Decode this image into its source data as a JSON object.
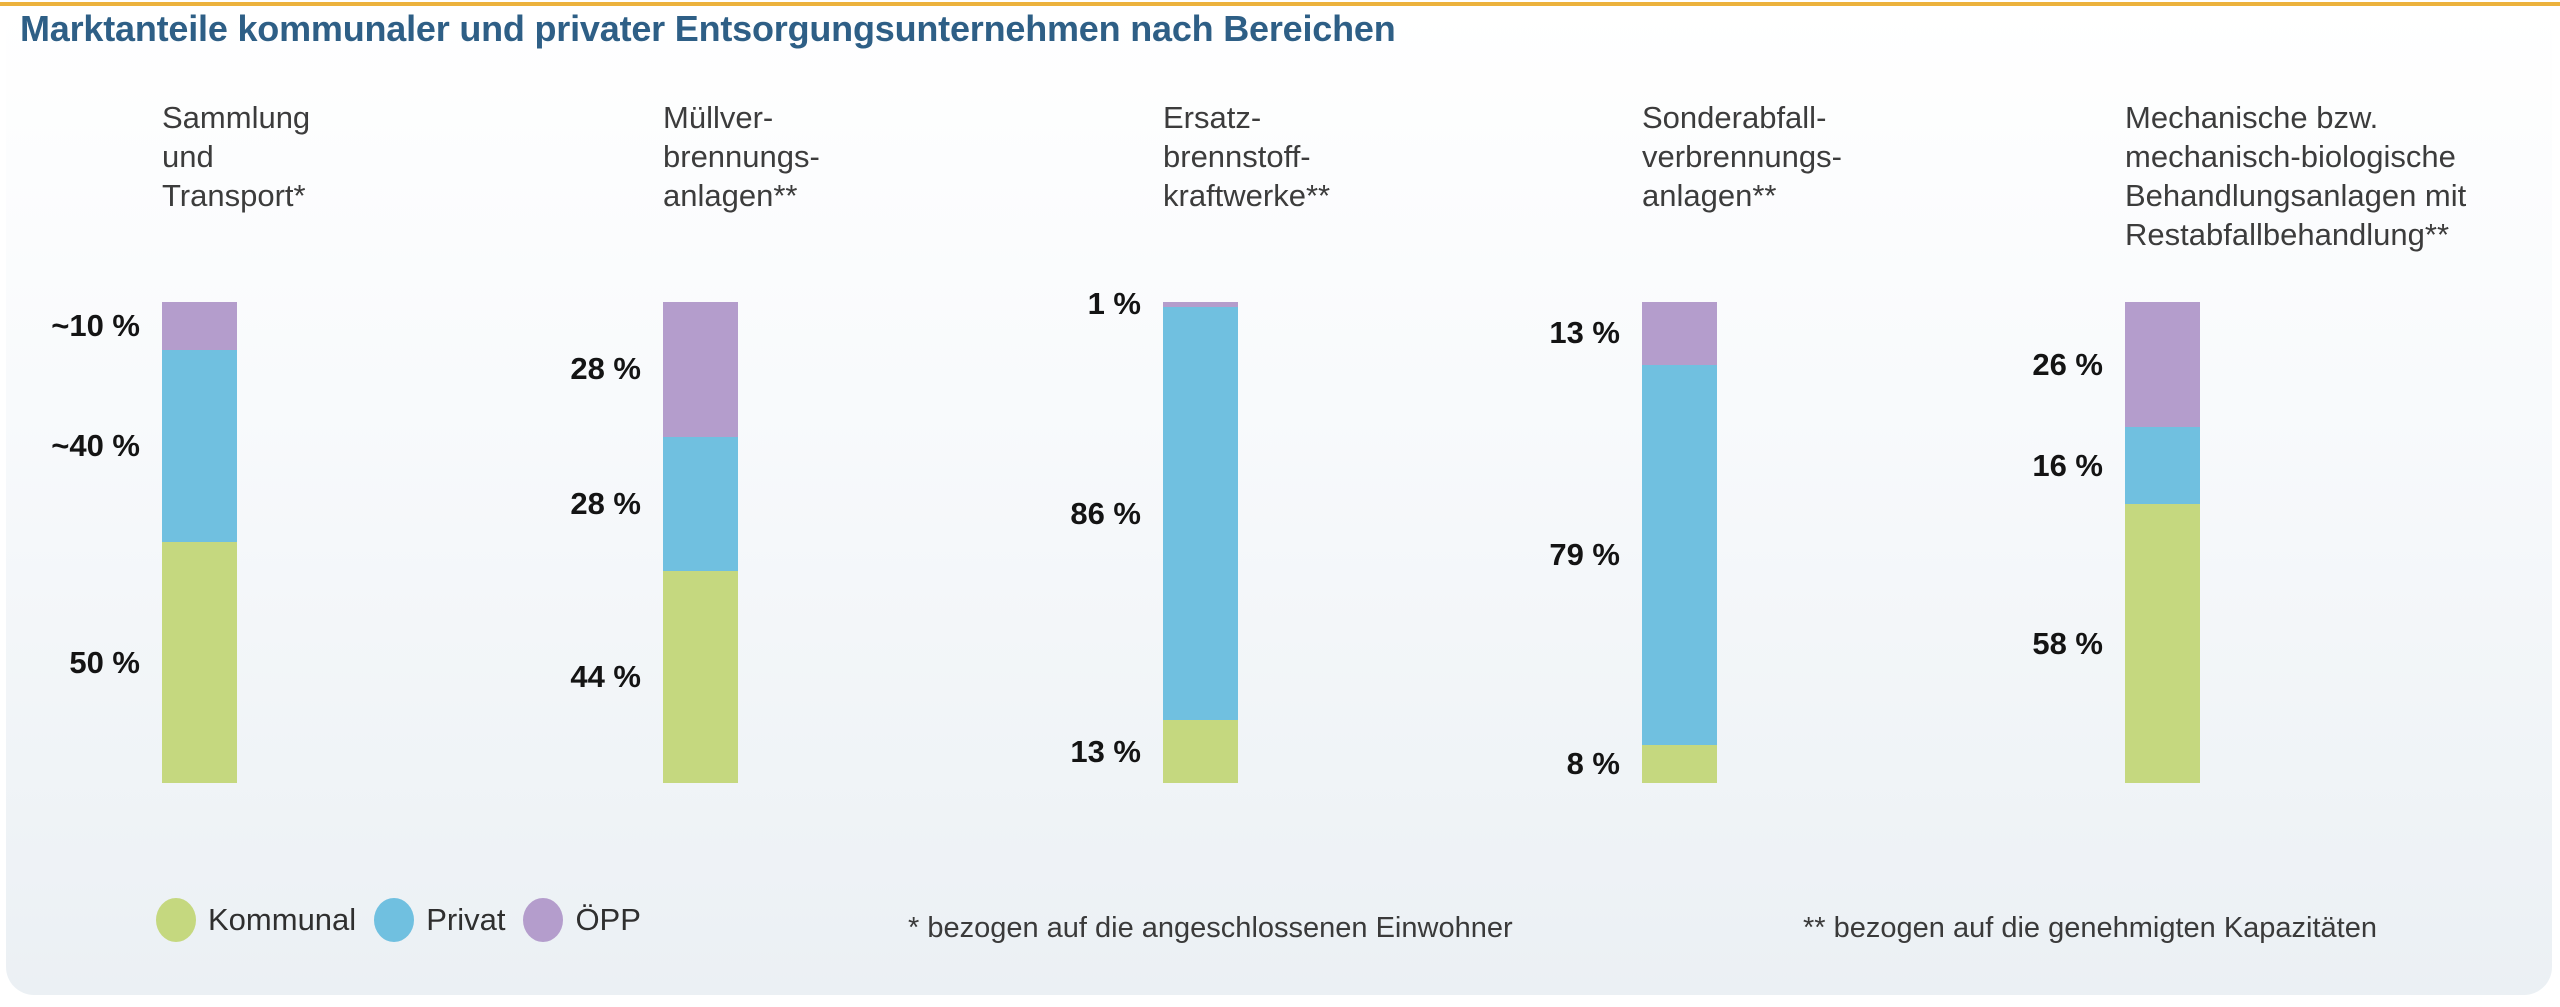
{
  "title": "Marktanteile kommunaler und privater Entsorgungsunternehmen nach Bereichen",
  "accent_color": "#ecb23d",
  "title_color": "#2e5f86",
  "chart_data": {
    "type": "bar",
    "subtype": "stacked-vertical-100-percent",
    "title": "Marktanteile kommunaler und privater Entsorgungsunternehmen nach Bereichen",
    "unit": "%",
    "series_order_top_to_bottom": [
      "ÖPP",
      "Privat",
      "Kommunal"
    ],
    "colors": {
      "Kommunal": "#c5d87f",
      "Privat": "#70c0e0",
      "ÖPP": "#b49dcc"
    },
    "groups": [
      {
        "category": "Sammlung\nund\nTransport*",
        "segments": [
          {
            "series": "ÖPP",
            "value": 10,
            "label": "~10 %"
          },
          {
            "series": "Privat",
            "value": 40,
            "label": "~40 %"
          },
          {
            "series": "Kommunal",
            "value": 50,
            "label": "50 %"
          }
        ]
      },
      {
        "category": "Müllver-\nbrennungs-\nanlagen**",
        "segments": [
          {
            "series": "ÖPP",
            "value": 28,
            "label": "28 %"
          },
          {
            "series": "Privat",
            "value": 28,
            "label": "28 %"
          },
          {
            "series": "Kommunal",
            "value": 44,
            "label": "44 %"
          }
        ]
      },
      {
        "category": "Ersatz-\nbrennstoff-\nkraftwerke**",
        "segments": [
          {
            "series": "ÖPP",
            "value": 1,
            "label": "1 %"
          },
          {
            "series": "Privat",
            "value": 86,
            "label": "86 %"
          },
          {
            "series": "Kommunal",
            "value": 13,
            "label": "13 %"
          }
        ]
      },
      {
        "category": "Sonderabfall-\nverbrennungs-\nanlagen**",
        "segments": [
          {
            "series": "ÖPP",
            "value": 13,
            "label": "13 %"
          },
          {
            "series": "Privat",
            "value": 79,
            "label": "79 %"
          },
          {
            "series": "Kommunal",
            "value": 8,
            "label": "8 %"
          }
        ]
      },
      {
        "category": "Mechanische bzw.\nmechanisch-biologische\nBehandlungsanlagen mit\nRestabfallbehandlung**",
        "segments": [
          {
            "series": "ÖPP",
            "value": 26,
            "label": "26 %"
          },
          {
            "series": "Privat",
            "value": 16,
            "label": "16 %"
          },
          {
            "series": "Kommunal",
            "value": 58,
            "label": "58 %"
          }
        ]
      }
    ],
    "legend": [
      {
        "label": "Kommunal",
        "color": "#c5d87f"
      },
      {
        "label": "Privat",
        "color": "#70c0e0"
      },
      {
        "label": "ÖPP",
        "color": "#b49dcc"
      }
    ],
    "legend_position": "bottom-left",
    "footnotes": [
      "* bezogen auf die angeschlossenen Einwohner",
      "** bezogen auf die genehmigten Kapazitäten"
    ],
    "axis": {
      "y_min": 0,
      "y_max": 100,
      "gridlines": false,
      "axes_visible": false
    }
  }
}
